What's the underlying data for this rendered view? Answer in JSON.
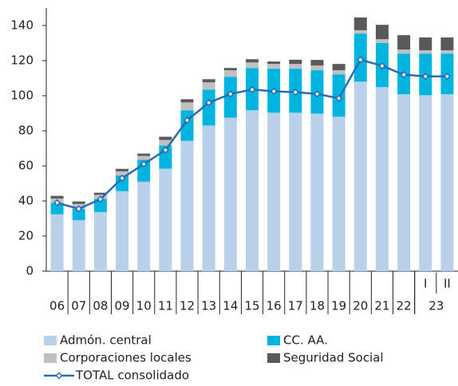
{
  "chart_data": {
    "type": "stacked-bar-line",
    "categories": [
      "06",
      "07",
      "08",
      "09",
      "10",
      "11",
      "12",
      "13",
      "14",
      "15",
      "16",
      "17",
      "18",
      "19",
      "20",
      "21",
      "22",
      "I",
      "II"
    ],
    "group_label": "23",
    "series": [
      {
        "name": "Admón. central",
        "color": "#b9d0ea",
        "values": [
          32.4,
          29,
          33.7,
          45.6,
          51,
          58.4,
          74.3,
          83,
          87.5,
          91.7,
          90.3,
          90.3,
          89.8,
          88,
          108,
          104.9,
          100.8,
          100.3,
          100.8
        ]
      },
      {
        "name": "CC. AA.",
        "color": "#00b4e0",
        "values": [
          6.5,
          6.5,
          7.5,
          9,
          12.4,
          13.2,
          17.4,
          20.5,
          23.3,
          24.1,
          25.1,
          25.1,
          24.7,
          24.2,
          27.4,
          25.1,
          23.2,
          23.7,
          23.2
        ]
      },
      {
        "name": "Corporaciones locales",
        "color": "#c0c0c0",
        "values": [
          2.5,
          2.8,
          2.3,
          2.3,
          2.3,
          3.2,
          4.5,
          4.1,
          3.7,
          3.2,
          2.7,
          2.7,
          2.7,
          2.3,
          1.9,
          2.2,
          2.3,
          1.9,
          1.9
        ]
      },
      {
        "name": "Seguridad Social",
        "color": "#595959",
        "values": [
          1.5,
          1.4,
          1.2,
          1.4,
          1.3,
          1.8,
          1.8,
          1.8,
          1.3,
          1.8,
          1.4,
          2.4,
          3.2,
          3.6,
          7.3,
          8.2,
          8.2,
          7.3,
          7.3
        ]
      }
    ],
    "line": {
      "name": "TOTAL consolidado",
      "color": "#2b6cb0",
      "values": [
        39,
        35.5,
        41,
        53,
        61,
        69,
        86,
        96,
        101,
        103.5,
        102.5,
        102,
        101,
        98.5,
        120.5,
        117,
        112,
        111,
        111
      ]
    },
    "ylim": [
      0,
      150
    ],
    "yticks": [
      0,
      20,
      40,
      60,
      80,
      100,
      120,
      140
    ]
  }
}
